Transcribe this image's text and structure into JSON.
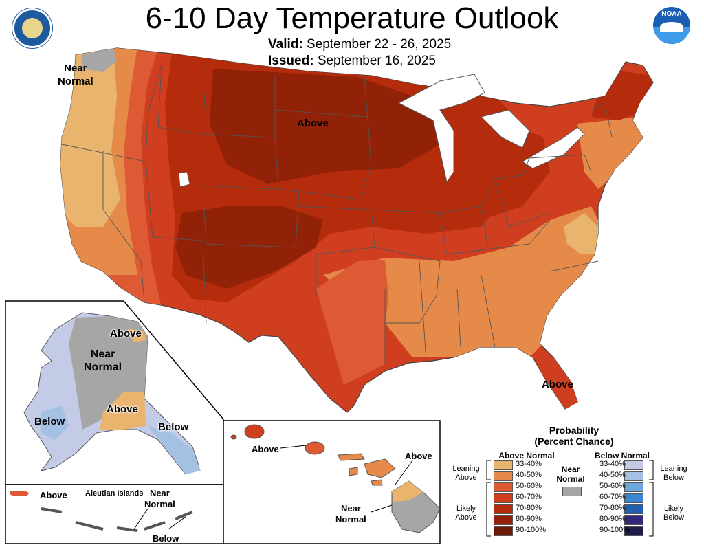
{
  "header": {
    "title": "6-10 Day Temperature Outlook",
    "valid_label": "Valid:",
    "valid_dates": "September 22 - 26, 2025",
    "issued_label": "Issued:",
    "issued_date": "September 16, 2025"
  },
  "logos": {
    "left": "us-department-of-commerce-seal-icon",
    "right": "noaa-logo-icon",
    "right_text": "NOAA"
  },
  "map_labels": {
    "northwest": "Near\nNormal",
    "central": "Above",
    "florida": "Above",
    "alaska_ne": "Above",
    "alaska_center": "Near\nNormal",
    "alaska_south": "Above",
    "alaska_west": "Below",
    "alaska_southeast": "Below",
    "aleutian_title": "Aleutian Islands",
    "aleutian_above": "Above",
    "aleutian_near": "Near\nNormal",
    "aleutian_below": "Below",
    "hawaii_west": "Above",
    "hawaii_east": "Above",
    "hawaii_near": "Near\nNormal"
  },
  "legend": {
    "title": "Probability",
    "subtitle": "(Percent Chance)",
    "above_header": "Above Normal",
    "below_header": "Below Normal",
    "near_header": "Near\nNormal",
    "near_color": "#a6a6a6",
    "leaning_above": "Leaning\nAbove",
    "likely_above": "Likely\nAbove",
    "leaning_below": "Leaning\nBelow",
    "likely_below": "Likely\nBelow",
    "above": [
      {
        "range": "33-40%",
        "color": "#e9b46e"
      },
      {
        "range": "40-50%",
        "color": "#e68a4a"
      },
      {
        "range": "50-60%",
        "color": "#de5a34"
      },
      {
        "range": "60-70%",
        "color": "#cf3e1f"
      },
      {
        "range": "70-80%",
        "color": "#b52c0c"
      },
      {
        "range": "80-90%",
        "color": "#922207"
      },
      {
        "range": "90-100%",
        "color": "#6e1b06"
      }
    ],
    "below": [
      {
        "range": "33-40%",
        "color": "#c3cbe6"
      },
      {
        "range": "40-50%",
        "color": "#a4c1e3"
      },
      {
        "range": "50-60%",
        "color": "#6fa8dc"
      },
      {
        "range": "60-70%",
        "color": "#3a87cf"
      },
      {
        "range": "70-80%",
        "color": "#1f5fae"
      },
      {
        "range": "80-90%",
        "color": "#33287a"
      },
      {
        "range": "90-100%",
        "color": "#1f1b4b"
      }
    ]
  }
}
